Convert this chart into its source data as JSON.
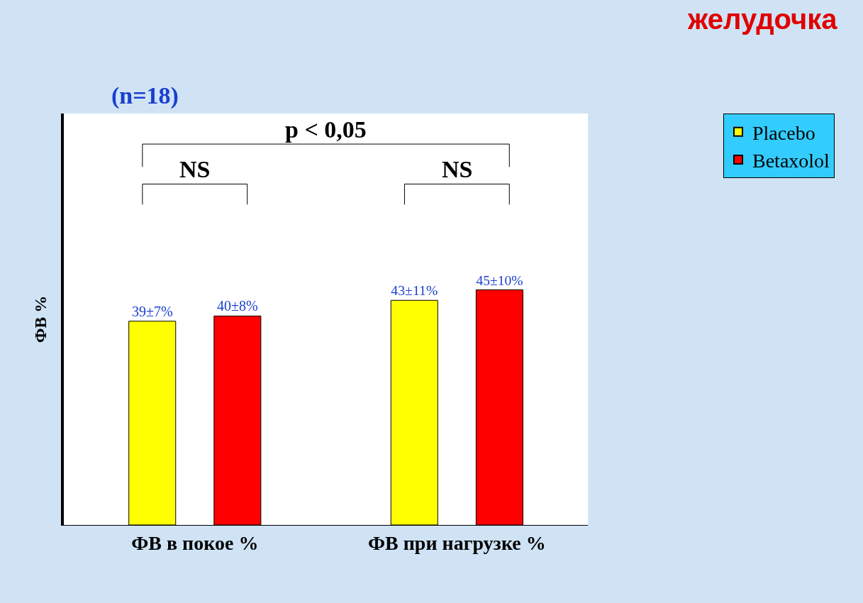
{
  "chart_data": {
    "type": "bar",
    "title": "желудочка",
    "ylabel": "ФВ %",
    "categories": [
      "ФВ в покое %",
      "ФВ при нагрузке %"
    ],
    "series": [
      {
        "name": "Placebo",
        "color": "#ffff00",
        "values": [
          39,
          43
        ],
        "value_labels": [
          "39±7%",
          "43±11%"
        ]
      },
      {
        "name": "Betaxolol",
        "color": "#ff0000",
        "values": [
          40,
          45
        ],
        "value_labels": [
          "40±8%",
          "45±10%"
        ]
      }
    ],
    "annotations": [
      "(n=18)",
      "NS",
      "p < 0,05",
      "NS"
    ],
    "legend": "top right"
  }
}
